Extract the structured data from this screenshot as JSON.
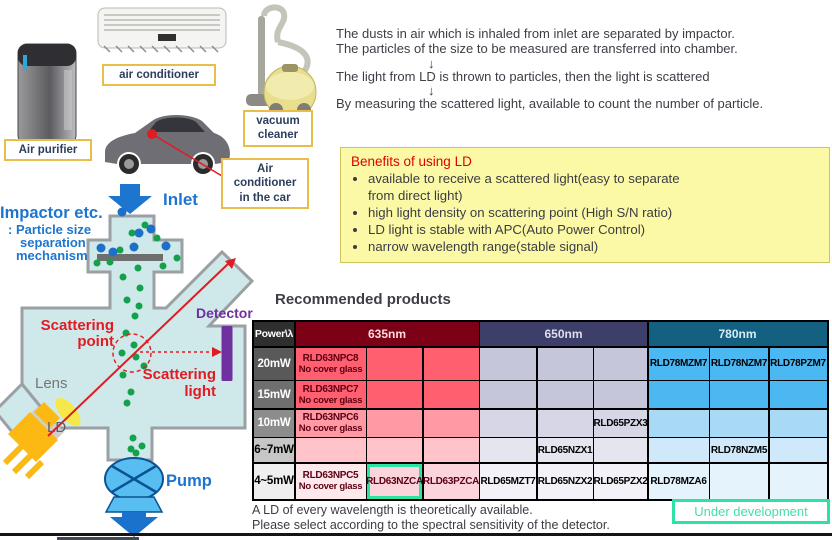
{
  "appliances": {
    "air_purifier": "Air purifier",
    "air_conditioner": "air conditioner",
    "vacuum_cleaner": "vacuum cleaner",
    "car_ac": "Air conditioner in the car"
  },
  "diagram": {
    "inlet": "Inlet",
    "impactor_title": "Impactor etc.",
    "impactor_sub": [
      ": Particle size",
      "separation",
      "mechanism"
    ],
    "scattering_point": [
      "Scattering",
      "point"
    ],
    "scattering_light": [
      "Scattering",
      "light"
    ],
    "detector": "Detector",
    "lens": "Lens",
    "ld": "LD",
    "pump": "Pump"
  },
  "description": {
    "lines": [
      "The dusts in air which is inhaled from inlet are separated by impactor.",
      "The particles of the size to be measured are transferred into chamber.",
      "The light from LD is thrown to particles, then the light is scattered",
      "By measuring the scattered light, available to count the number of particle."
    ],
    "arrow": "↓"
  },
  "benefits": {
    "title": "Benefits of using LD",
    "items": [
      "available to receive a scattered light(easy to separate\nfrom direct light)",
      "high light density on scattering point (High S/N ratio)",
      "LD light is stable with APC(Auto Power Control)",
      "narrow wavelength range(stable signal)"
    ]
  },
  "table": {
    "title": "Recommended products",
    "corner": "Power\\λ",
    "wavelengths": [
      "635nm",
      "650nm",
      "780nm"
    ],
    "rows": [
      {
        "power": "20mW",
        "cells": [
          {
            "t": "RLD63NPC8",
            "n": "No cover glass"
          },
          null,
          null,
          null,
          null,
          null,
          {
            "t": "RLD78MZM7"
          },
          {
            "t": "RLD78NZM7"
          },
          {
            "t": "RLD78PZM7"
          }
        ]
      },
      {
        "power": "15mW",
        "cells": [
          {
            "t": "RLD63NPC7",
            "n": "No cover glass"
          },
          null,
          null,
          null,
          null,
          null,
          null,
          null,
          null
        ]
      },
      {
        "power": "10mW",
        "cells": [
          {
            "t": "RLD63NPC6",
            "n": "No cover glass"
          },
          null,
          null,
          null,
          null,
          {
            "t": "RLD65PZX3"
          },
          null,
          null,
          null
        ]
      },
      {
        "power": "6~7mW",
        "cells": [
          null,
          null,
          null,
          null,
          {
            "t": "RLD65NZX1"
          },
          null,
          null,
          {
            "t": "RLD78NZM5"
          },
          null
        ]
      },
      {
        "power": "4~5mW",
        "cells": [
          {
            "t": "RLD63NPC5",
            "n": "No cover glass",
            "light": true
          },
          {
            "t": "RLD63NZCA",
            "hl": true
          },
          {
            "t": "RLD63PZCA"
          },
          {
            "t": "RLD65MZT7"
          },
          {
            "t": "RLD65NZX2"
          },
          {
            "t": "RLD65PZX2"
          },
          {
            "t": "RLD78MZA6"
          },
          null,
          null
        ]
      }
    ]
  },
  "footer": {
    "note1": "A LD of every wavelength is theoretically available.",
    "note2": "Please select according to the spectral sensitivity of the detector.",
    "under_development": "Under development"
  },
  "colors": {
    "accent_blue": "#1c75cf",
    "red": "#e11b22",
    "purple": "#7030a0",
    "green_highlight": "#2ce3a4",
    "benefits_bg": "#fbf9a5",
    "wl_headers": [
      "#7c0016",
      "#3e3e6b",
      "#136080"
    ],
    "wl_text": [
      "#ffd9de",
      "#dedeee",
      "#d6ecf7"
    ],
    "power_header_bg": "#2f2f2f",
    "power_rows": [
      "#595959",
      "#6f6f6f",
      "#8c8c8c",
      "#c6c6c6",
      "#efefef"
    ],
    "cells_635": [
      "#ff5f6f",
      "#ff5f6f",
      "#ff9aa5",
      "#ffc3ca",
      "#fbd5db"
    ],
    "cells_635_light": "#fde9ec",
    "cells_650": [
      "#c6c6da",
      "#c6c6da",
      "#d6d6e6",
      "#e5e5f0",
      "#f2f2f8"
    ],
    "cells_780": [
      "#4bb8f2",
      "#4bb8f2",
      "#a8daf6",
      "#cfe9fa",
      "#e4f3fc"
    ],
    "text_635": "#5c0013"
  }
}
